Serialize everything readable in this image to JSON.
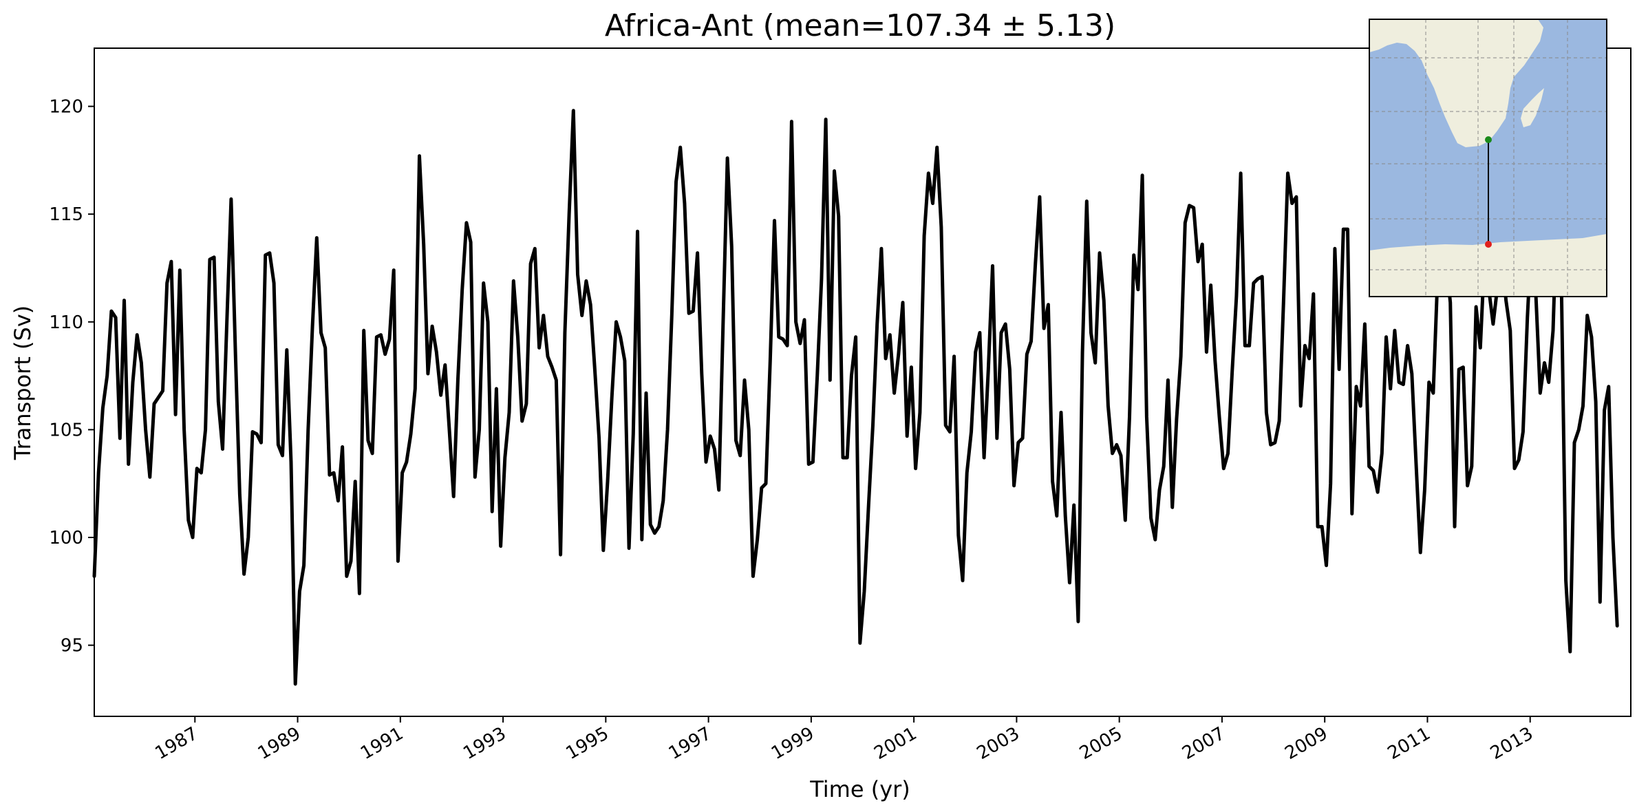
{
  "chart_data": {
    "type": "line",
    "title": "Africa-Ant (mean=107.34 ± 5.13)",
    "xlabel": "Time (yr)",
    "ylabel": "Transport (Sv)",
    "xlim": [
      1985.04,
      2014.96
    ],
    "ylim": [
      91.7,
      122.7
    ],
    "x_ticks": [
      "1987",
      "1989",
      "1991",
      "1993",
      "1995",
      "1997",
      "1999",
      "2001",
      "2003",
      "2005",
      "2007",
      "2009",
      "2011",
      "2013"
    ],
    "y_ticks": [
      95,
      100,
      105,
      110,
      115,
      120
    ],
    "grid": false,
    "line_color": "#000000",
    "x_start": 1985.04,
    "x_step": 0.0833,
    "series": [
      {
        "values": [
          98.2,
          103.0,
          106.0,
          107.5,
          110.5,
          110.2,
          104.6,
          111.0,
          103.4,
          107.2,
          109.4,
          108.1,
          105.0,
          102.8,
          106.2,
          106.5,
          106.8,
          111.8,
          112.8,
          105.7,
          112.4,
          105.0,
          100.8,
          100.0,
          103.2,
          103.0,
          105.0,
          112.9,
          113.0,
          106.3,
          104.1,
          110.0,
          115.7,
          108.5,
          102.0,
          98.3,
          100.0,
          104.9,
          104.8,
          104.4,
          113.1,
          113.2,
          111.8,
          104.3,
          103.8,
          108.7,
          103.5,
          93.2,
          97.5,
          98.7,
          105.0,
          109.8,
          113.9,
          109.5,
          108.8,
          102.9,
          103.0,
          101.7,
          104.2,
          98.2,
          98.9,
          102.6,
          97.4,
          109.6,
          104.5,
          103.9,
          109.3,
          109.4,
          108.5,
          109.2,
          112.4,
          98.9,
          103.0,
          103.5,
          104.8,
          106.9,
          117.7,
          113.6,
          107.6,
          109.8,
          108.6,
          106.6,
          108.0,
          105.0,
          101.9,
          107.3,
          111.5,
          114.6,
          113.7,
          102.8,
          105.0,
          111.8,
          110.0,
          101.2,
          106.9,
          99.6,
          103.7,
          105.8,
          111.9,
          109.3,
          105.4,
          106.2,
          112.7,
          113.4,
          108.8,
          110.3,
          108.4,
          107.9,
          107.3,
          99.2,
          109.5,
          115.0,
          119.8,
          112.2,
          110.3,
          111.9,
          110.8,
          107.8,
          104.6,
          99.4,
          102.6,
          106.5,
          110.0,
          109.3,
          108.2,
          99.5,
          104.8,
          114.2,
          99.9,
          106.7,
          100.6,
          100.2,
          100.5,
          101.7,
          105.0,
          110.3,
          116.5,
          118.1,
          115.5,
          110.4,
          110.5,
          113.2,
          107.6,
          103.5,
          104.7,
          104.1,
          102.2,
          110.0,
          117.6,
          113.5,
          104.5,
          103.8,
          107.3,
          105.0,
          98.2,
          99.9,
          102.3,
          102.5,
          108.2,
          114.7,
          109.3,
          109.2,
          108.9,
          119.3,
          110.0,
          109.0,
          110.1,
          103.4,
          103.5,
          107.5,
          112.0,
          119.4,
          107.3,
          117.0,
          114.9,
          103.7,
          103.7,
          107.5,
          109.3,
          95.1,
          97.5,
          101.5,
          105.2,
          109.9,
          113.4,
          108.3,
          109.4,
          106.7,
          108.5,
          110.9,
          104.7,
          107.9,
          103.2,
          105.8,
          114.0,
          116.9,
          115.5,
          118.1,
          114.4,
          105.2,
          104.9,
          108.4,
          100.1,
          98.0,
          103.0,
          104.9,
          108.6,
          109.5,
          103.7,
          107.8,
          112.6,
          104.6,
          109.5,
          109.9,
          107.8,
          102.4,
          104.4,
          104.6,
          108.5,
          109.1,
          112.7,
          115.8,
          109.7,
          110.8,
          102.6,
          101.0,
          105.8,
          101.0,
          97.9,
          101.5,
          96.1,
          108.6,
          115.6,
          109.5,
          108.1,
          113.2,
          111.0,
          106.1,
          103.9,
          104.3,
          103.8,
          100.8,
          105.6,
          113.1,
          111.5,
          116.8,
          105.6,
          100.9,
          99.9,
          102.2,
          103.3,
          107.3,
          101.4,
          105.5,
          108.4,
          114.6,
          115.4,
          115.3,
          112.8,
          113.6,
          108.6,
          111.7,
          108.2,
          105.6,
          103.2,
          103.9,
          107.7,
          111.2,
          116.9,
          108.9,
          108.9,
          111.8,
          112.0,
          112.1,
          105.8,
          104.3,
          104.4,
          105.4,
          110.9,
          116.9,
          115.5,
          115.8,
          106.1,
          108.9,
          108.3,
          111.3,
          100.5,
          100.5,
          98.7,
          102.5,
          113.4,
          107.8,
          114.3,
          114.3,
          101.1,
          107.0,
          106.1,
          109.9,
          103.3,
          103.1,
          102.1,
          103.9,
          109.3,
          106.9,
          109.6,
          107.2,
          107.1,
          108.9,
          107.6,
          103.4,
          99.3,
          102.2,
          107.2,
          106.7,
          112.0,
          116.3,
          112.9,
          110.9,
          100.5,
          107.8,
          107.9,
          102.4,
          103.3,
          110.7,
          108.8,
          113.1,
          111.5,
          109.9,
          111.6,
          113.2,
          111.0,
          109.6,
          103.2,
          103.6,
          104.9,
          110.2,
          114.1,
          111.2,
          106.7,
          108.1,
          107.2,
          109.6,
          115.9,
          111.2,
          98.0,
          94.7,
          104.4,
          105.0,
          106.1,
          110.3,
          109.3,
          106.3,
          97.0,
          105.9,
          107.0,
          100.0,
          95.9
        ]
      }
    ]
  },
  "inset_map": {
    "ocean_color": "#9bb8e0",
    "land_color": "#efeede",
    "section_start_marker_color": "#1a8a1a",
    "section_end_marker_color": "#e0201e",
    "section_line_color": "#000000"
  }
}
